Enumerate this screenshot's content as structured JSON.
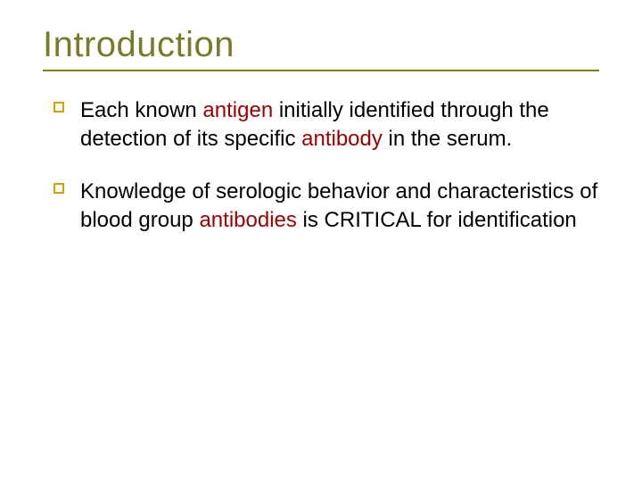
{
  "slide": {
    "title": "Introduction",
    "title_color": "#7a7a2a",
    "rule_color": "#808000",
    "bullet_marker_color": "#d4a000",
    "highlight_color": "#9a0000",
    "body_text_color": "#000000",
    "background_color": "#ffffff",
    "title_fontsize": 40,
    "body_fontsize": 24,
    "bullets": [
      {
        "segments": [
          {
            "text": "Each known ",
            "hl": false
          },
          {
            "text": "antigen",
            "hl": true
          },
          {
            "text": " initially identified through the detection of its specific ",
            "hl": false
          },
          {
            "text": "antibody",
            "hl": true
          },
          {
            "text": " in the serum.",
            "hl": false
          }
        ]
      },
      {
        "segments": [
          {
            "text": "Knowledge of serologic behavior and characteristics of blood group ",
            "hl": false
          },
          {
            "text": "antibodies",
            "hl": true
          },
          {
            "text": " is CRITICAL for identification",
            "hl": false
          }
        ]
      }
    ]
  }
}
